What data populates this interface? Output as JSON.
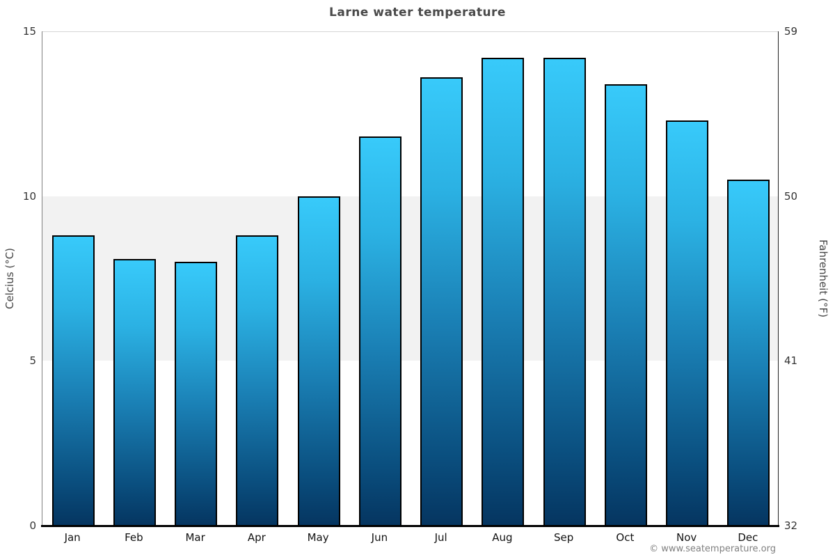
{
  "title": "Larne water temperature",
  "chart_data": {
    "type": "bar",
    "title": "Larne water temperature",
    "categories": [
      "Jan",
      "Feb",
      "Mar",
      "Apr",
      "May",
      "Jun",
      "Jul",
      "Aug",
      "Sep",
      "Oct",
      "Nov",
      "Dec"
    ],
    "values": [
      8.8,
      8.1,
      8.0,
      8.8,
      10.0,
      11.8,
      13.6,
      14.2,
      14.2,
      13.4,
      12.3,
      10.5
    ],
    "unit": "°C",
    "ylabel_left": "Celcius (°C)",
    "ylabel_right": "Fahrenheit (°F)",
    "yticks_left": [
      0,
      5,
      10,
      15
    ],
    "yticks_right": [
      32,
      41,
      50,
      59
    ],
    "ylim": [
      0,
      15
    ],
    "plot_band_celsius": [
      5,
      10
    ],
    "grid": "top line at 15°C only, shaded band 5-10°C",
    "legend_position": "none"
  },
  "colors": {
    "bar_gradient_top": "#38cafa",
    "bar_gradient_bottom": "#053560",
    "bar_border": "#000000",
    "band_fill": "#f2f2f2",
    "gridline": "#d6d6d6",
    "title_text": "#4a4a4a",
    "axis_text": "#333333",
    "copyright_text": "#808080"
  },
  "footer": {
    "copyright": "© www.seatemperature.org"
  }
}
